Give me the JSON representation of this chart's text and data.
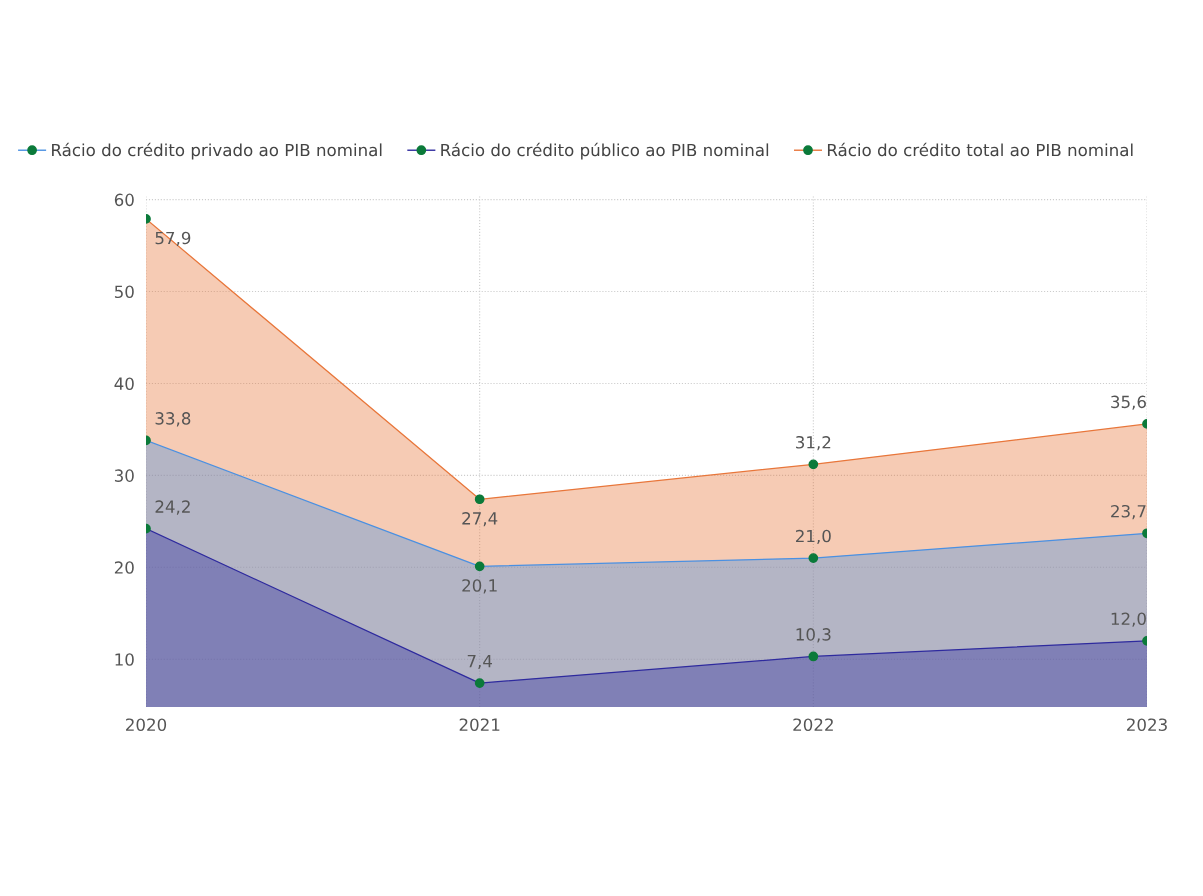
{
  "chart_data": {
    "type": "area",
    "categories": [
      "2020",
      "2021",
      "2022",
      "2023"
    ],
    "series": [
      {
        "name": "Rácio do crédito privado ao PIB nominal",
        "color": "#4a90e2",
        "values": [
          33.8,
          20.1,
          21.0,
          23.7
        ],
        "value_labels": [
          "33,8",
          "20,1",
          "21,0",
          "23,7"
        ]
      },
      {
        "name": "Rácio do crédito público ao PIB nominal",
        "color": "#2e2a9e",
        "values": [
          24.2,
          7.4,
          10.3,
          12.0
        ],
        "value_labels": [
          "24,2",
          "7,4",
          "10,3",
          "12,0"
        ]
      },
      {
        "name": "Rácio do crédito total ao PIB nominal",
        "color": "#e8763a",
        "values": [
          57.9,
          27.4,
          31.2,
          35.6
        ],
        "value_labels": [
          "57,9",
          "27,4",
          "31,2",
          "35,6"
        ]
      }
    ],
    "ylim": [
      4.8,
      60.5
    ],
    "yticks": [
      10,
      20,
      30,
      40,
      50,
      60
    ],
    "grid": true,
    "legend": "top",
    "marker": "circle",
    "line_style": "solid"
  }
}
